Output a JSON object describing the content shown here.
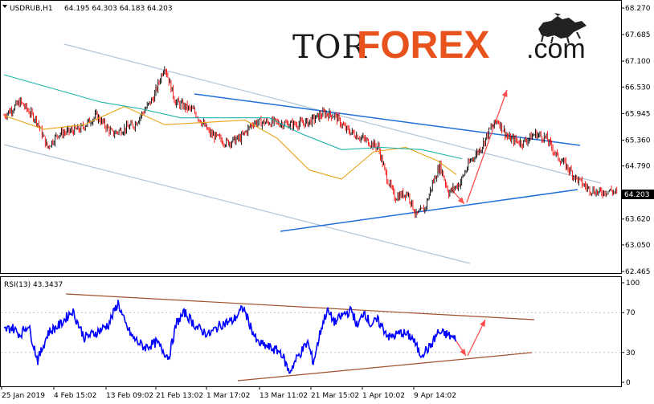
{
  "header": {
    "symbol": "USDRUB,H1",
    "ohlc": "64.195 64.303 64.183 64.203"
  },
  "logo": {
    "tor": "TOR",
    "forex": "FOREX",
    "com": ".com",
    "bull_icon": "bull-icon"
  },
  "price_tag": "64.203",
  "rsi_header": "RSI(13) 43.3437",
  "colors": {
    "bull": "#000000",
    "bear": "#ff0000",
    "ma_fast": "#e8a317",
    "ma_slow": "#20b2aa",
    "channel": "#b0c4d8",
    "trendline": "#1e6fd9",
    "arrow": "#ff4d4d",
    "rsi": "#0000ff",
    "rsi_trend": "#a0522d"
  },
  "chart_data": [
    {
      "type": "line",
      "title": "USDRUB,H1",
      "ylim": [
        62.465,
        68.27
      ],
      "y_ticks": [
        "68.270",
        "67.685",
        "67.100",
        "66.530",
        "65.945",
        "65.360",
        "64.790",
        "64.203",
        "63.620",
        "63.050",
        "62.465"
      ],
      "x_ticks": [
        "25 Jan 2019",
        "4 Feb 15:02",
        "13 Feb 09:02",
        "21 Feb 13:02",
        "1 Mar 17:02",
        "13 Mar 11:02",
        "21 Mar 15:02",
        "1 Apr 10:02",
        "9 Apr 14:02"
      ],
      "last_price": 64.203,
      "price_keypoints": [
        [
          0,
          65.9
        ],
        [
          15,
          66.2
        ],
        [
          30,
          65.8
        ],
        [
          40,
          65.2
        ],
        [
          50,
          65.5
        ],
        [
          70,
          65.6
        ],
        [
          85,
          65.9
        ],
        [
          100,
          65.5
        ],
        [
          120,
          65.7
        ],
        [
          138,
          66.3
        ],
        [
          148,
          67.0
        ],
        [
          158,
          66.2
        ],
        [
          175,
          66.0
        ],
        [
          190,
          65.5
        ],
        [
          205,
          65.3
        ],
        [
          218,
          65.4
        ],
        [
          230,
          65.75
        ],
        [
          250,
          65.75
        ],
        [
          265,
          65.7
        ],
        [
          280,
          65.75
        ],
        [
          295,
          65.95
        ],
        [
          305,
          65.9
        ],
        [
          315,
          65.6
        ],
        [
          330,
          65.4
        ],
        [
          345,
          65.2
        ],
        [
          352,
          64.6
        ],
        [
          360,
          64.1
        ],
        [
          372,
          64.2
        ],
        [
          380,
          63.7
        ],
        [
          388,
          63.85
        ],
        [
          395,
          64.4
        ],
        [
          402,
          64.8
        ],
        [
          410,
          64.2
        ],
        [
          420,
          64.4
        ],
        [
          430,
          64.9
        ],
        [
          440,
          65.2
        ],
        [
          448,
          65.6
        ],
        [
          455,
          65.8
        ],
        [
          465,
          65.4
        ],
        [
          478,
          65.3
        ],
        [
          490,
          65.5
        ],
        [
          500,
          65.4
        ],
        [
          510,
          65.0
        ],
        [
          518,
          64.8
        ],
        [
          528,
          64.5
        ],
        [
          538,
          64.3
        ],
        [
          548,
          64.2
        ],
        [
          558,
          64.25
        ],
        [
          565,
          64.2
        ]
      ],
      "series": [
        {
          "name": "",
          "kind": "moving-average-fast",
          "values": [
            [
              0,
              65.9
            ],
            [
              50,
              65.6
            ],
            [
              100,
              65.7
            ],
            [
              150,
              66.1
            ],
            [
              200,
              65.7
            ],
            [
              250,
              65.75
            ],
            [
              300,
              65.8
            ],
            [
              340,
              65.4
            ],
            [
              380,
              64.7
            ],
            [
              420,
              64.5
            ],
            [
              460,
              65.1
            ],
            [
              500,
              65.2
            ],
            [
              540,
              64.9
            ],
            [
              563,
              64.6
            ]
          ]
        },
        {
          "name": "",
          "kind": "moving-average-slow",
          "values": [
            [
              0,
              66.8
            ],
            [
              60,
              66.5
            ],
            [
              120,
              66.2
            ],
            [
              170,
              66.05
            ],
            [
              220,
              65.85
            ],
            [
              280,
              65.85
            ],
            [
              330,
              65.85
            ],
            [
              370,
              65.5
            ],
            [
              420,
              65.15
            ],
            [
              470,
              65.2
            ],
            [
              520,
              65.15
            ],
            [
              570,
              64.95
            ]
          ]
        }
      ]
    },
    {
      "type": "line",
      "title": "RSI(13) 43.3437",
      "ylim": [
        0,
        100
      ],
      "y_ticks": [
        "100",
        "70",
        "30",
        "0"
      ],
      "levels": [
        70,
        30
      ],
      "rsi_keypoints": [
        [
          0,
          52
        ],
        [
          10,
          55
        ],
        [
          20,
          48
        ],
        [
          30,
          58
        ],
        [
          42,
          22
        ],
        [
          55,
          50
        ],
        [
          70,
          58
        ],
        [
          85,
          72
        ],
        [
          100,
          45
        ],
        [
          115,
          50
        ],
        [
          130,
          58
        ],
        [
          142,
          80
        ],
        [
          150,
          60
        ],
        [
          160,
          45
        ],
        [
          175,
          35
        ],
        [
          190,
          40
        ],
        [
          205,
          25
        ],
        [
          215,
          60
        ],
        [
          225,
          70
        ],
        [
          240,
          55
        ],
        [
          255,
          48
        ],
        [
          270,
          58
        ],
        [
          285,
          62
        ],
        [
          298,
          75
        ],
        [
          305,
          60
        ],
        [
          315,
          40
        ],
        [
          330,
          35
        ],
        [
          345,
          30
        ],
        [
          355,
          10
        ],
        [
          365,
          25
        ],
        [
          378,
          40
        ],
        [
          385,
          20
        ],
        [
          395,
          55
        ],
        [
          402,
          72
        ],
        [
          412,
          60
        ],
        [
          422,
          68
        ],
        [
          433,
          72
        ],
        [
          440,
          55
        ],
        [
          448,
          72
        ],
        [
          456,
          58
        ],
        [
          465,
          62
        ],
        [
          480,
          45
        ],
        [
          495,
          50
        ],
        [
          508,
          45
        ],
        [
          518,
          28
        ],
        [
          530,
          35
        ],
        [
          540,
          50
        ],
        [
          552,
          48
        ],
        [
          562,
          43
        ]
      ]
    }
  ]
}
